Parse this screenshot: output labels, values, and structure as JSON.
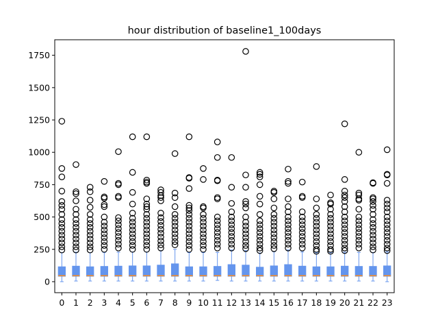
{
  "chart_data": {
    "type": "boxplot",
    "title": "hour distribution of baseline1_100days",
    "xlabel": "",
    "ylabel": "",
    "ylim": [
      -85,
      1870
    ],
    "yticks": [
      0,
      250,
      500,
      750,
      1000,
      1250,
      1500,
      1750
    ],
    "ytick_labels": [
      "0",
      "250",
      "500",
      "750",
      "1000",
      "1250",
      "1500",
      "1750"
    ],
    "grid": false,
    "colors": {
      "box": "#6495ed",
      "median": "#ff8c1a",
      "whisker": "#6495ed",
      "flier": "#000000"
    },
    "categories": [
      "0",
      "1",
      "2",
      "3",
      "4",
      "5",
      "6",
      "7",
      "8",
      "9",
      "10",
      "11",
      "12",
      "13",
      "14",
      "15",
      "16",
      "17",
      "18",
      "19",
      "20",
      "21",
      "22",
      "23"
    ],
    "boxes": [
      {
        "q1": 42,
        "median": 46,
        "q3": 115,
        "whislo": 0,
        "whishi": 225,
        "fliers": [
          1240,
          875,
          810,
          700,
          620,
          590,
          560,
          520,
          480,
          450,
          420,
          390,
          360,
          330,
          300,
          270,
          245
        ]
      },
      {
        "q1": 42,
        "median": 46,
        "q3": 120,
        "whislo": 5,
        "whishi": 228,
        "fliers": [
          905,
          695,
          680,
          625,
          560,
          520,
          480,
          450,
          420,
          390,
          360,
          330,
          300,
          270,
          245
        ]
      },
      {
        "q1": 42,
        "median": 46,
        "q3": 115,
        "whislo": 5,
        "whishi": 225,
        "fliers": [
          730,
          695,
          630,
          575,
          520,
          480,
          450,
          420,
          390,
          360,
          330,
          300,
          270,
          245
        ]
      },
      {
        "q1": 42,
        "median": 46,
        "q3": 118,
        "whislo": 5,
        "whishi": 226,
        "fliers": [
          775,
          655,
          645,
          595,
          580,
          500,
          460,
          430,
          400,
          370,
          340,
          310,
          280,
          250
        ]
      },
      {
        "q1": 42,
        "median": 46,
        "q3": 120,
        "whislo": 5,
        "whishi": 228,
        "fliers": [
          1005,
          760,
          750,
          660,
          650,
          495,
          470,
          440,
          410,
          380,
          350,
          320,
          290,
          260
        ]
      },
      {
        "q1": 42,
        "median": 46,
        "q3": 122,
        "whislo": 5,
        "whishi": 230,
        "fliers": [
          1120,
          845,
          690,
          600,
          530,
          490,
          460,
          430,
          400,
          370,
          340,
          310,
          280,
          250
        ]
      },
      {
        "q1": 42,
        "median": 46,
        "q3": 122,
        "whislo": 5,
        "whishi": 230,
        "fliers": [
          1120,
          785,
          770,
          760,
          640,
          600,
          580,
          560,
          520,
          490,
          460,
          430,
          400,
          370,
          340,
          310,
          280,
          250
        ]
      },
      {
        "q1": 42,
        "median": 46,
        "q3": 128,
        "whislo": 5,
        "whishi": 240,
        "fliers": [
          710,
          690,
          665,
          650,
          625,
          530,
          495,
          465,
          435,
          405,
          375,
          345,
          315,
          285,
          260
        ]
      },
      {
        "q1": 42,
        "median": 46,
        "q3": 138,
        "whislo": 5,
        "whishi": 250,
        "fliers": [
          990,
          685,
          650,
          580,
          520,
          490,
          460,
          430,
          400,
          370,
          340,
          310,
          285
        ]
      },
      {
        "q1": 42,
        "median": 46,
        "q3": 115,
        "whislo": 5,
        "whishi": 225,
        "fliers": [
          1120,
          805,
          800,
          720,
          590,
          570,
          550,
          520,
          490,
          460,
          430,
          400,
          370,
          340,
          310,
          280,
          250
        ]
      },
      {
        "q1": 42,
        "median": 46,
        "q3": 115,
        "whislo": 5,
        "whishi": 225,
        "fliers": [
          875,
          790,
          580,
          570,
          520,
          490,
          460,
          430,
          400,
          370,
          340,
          310,
          280,
          250
        ]
      },
      {
        "q1": 42,
        "median": 46,
        "q3": 118,
        "whislo": 10,
        "whishi": 226,
        "fliers": [
          1080,
          960,
          785,
          780,
          650,
          640,
          500,
          470,
          440,
          410,
          380,
          350,
          320,
          290,
          260
        ]
      },
      {
        "q1": 42,
        "median": 46,
        "q3": 132,
        "whislo": 5,
        "whishi": 245,
        "fliers": [
          960,
          730,
          605,
          540,
          500,
          470,
          440,
          410,
          380,
          350,
          320,
          290,
          260
        ]
      },
      {
        "q1": 42,
        "median": 46,
        "q3": 128,
        "whislo": 5,
        "whishi": 240,
        "fliers": [
          1780,
          825,
          730,
          620,
          600,
          570,
          500,
          460,
          430,
          400,
          370,
          340,
          310,
          280,
          255
        ]
      },
      {
        "q1": 42,
        "median": 46,
        "q3": 112,
        "whislo": 5,
        "whishi": 222,
        "fliers": [
          845,
          830,
          810,
          750,
          660,
          600,
          520,
          470,
          440,
          410,
          380,
          350,
          320,
          290,
          260,
          240
        ]
      },
      {
        "q1": 42,
        "median": 46,
        "q3": 122,
        "whislo": 5,
        "whishi": 232,
        "fliers": [
          700,
          690,
          640,
          570,
          520,
          490,
          460,
          430,
          400,
          370,
          340,
          310,
          280,
          255
        ]
      },
      {
        "q1": 42,
        "median": 46,
        "q3": 132,
        "whislo": 5,
        "whishi": 245,
        "fliers": [
          870,
          775,
          760,
          640,
          580,
          540,
          500,
          470,
          440,
          410,
          380,
          350,
          320,
          290,
          260
        ]
      },
      {
        "q1": 42,
        "median": 46,
        "q3": 120,
        "whislo": 5,
        "whishi": 230,
        "fliers": [
          770,
          660,
          650,
          540,
          500,
          470,
          440,
          410,
          380,
          350,
          320,
          290,
          260
        ]
      },
      {
        "q1": 42,
        "median": 46,
        "q3": 115,
        "whislo": 5,
        "whishi": 225,
        "fliers": [
          890,
          640,
          570,
          520,
          490,
          460,
          430,
          400,
          370,
          340,
          310,
          280,
          250,
          235
        ]
      },
      {
        "q1": 42,
        "median": 46,
        "q3": 115,
        "whislo": 5,
        "whishi": 225,
        "fliers": [
          670,
          610,
          600,
          560,
          520,
          490,
          460,
          430,
          400,
          370,
          340,
          310,
          280,
          250,
          235
        ]
      },
      {
        "q1": 42,
        "median": 46,
        "q3": 120,
        "whislo": 5,
        "whishi": 228,
        "fliers": [
          1220,
          790,
          700,
          670,
          650,
          620,
          580,
          540,
          500,
          470,
          440,
          410,
          380,
          350,
          320,
          290,
          260,
          240
        ]
      },
      {
        "q1": 42,
        "median": 46,
        "q3": 118,
        "whislo": 5,
        "whishi": 226,
        "fliers": [
          1000,
          685,
          670,
          640,
          630,
          560,
          500,
          470,
          440,
          410,
          380,
          350,
          320,
          290,
          260
        ]
      },
      {
        "q1": 42,
        "median": 46,
        "q3": 118,
        "whislo": 5,
        "whishi": 226,
        "fliers": [
          765,
          760,
          650,
          640,
          620,
          590,
          560,
          520,
          480,
          450,
          420,
          390,
          360,
          330,
          300,
          270,
          245
        ]
      },
      {
        "q1": 42,
        "median": 46,
        "q3": 122,
        "whislo": 0,
        "whishi": 230,
        "fliers": [
          1020,
          830,
          825,
          760,
          630,
          600,
          570,
          540,
          500,
          470,
          440,
          410,
          380,
          350,
          320,
          290,
          260,
          240
        ]
      }
    ]
  }
}
